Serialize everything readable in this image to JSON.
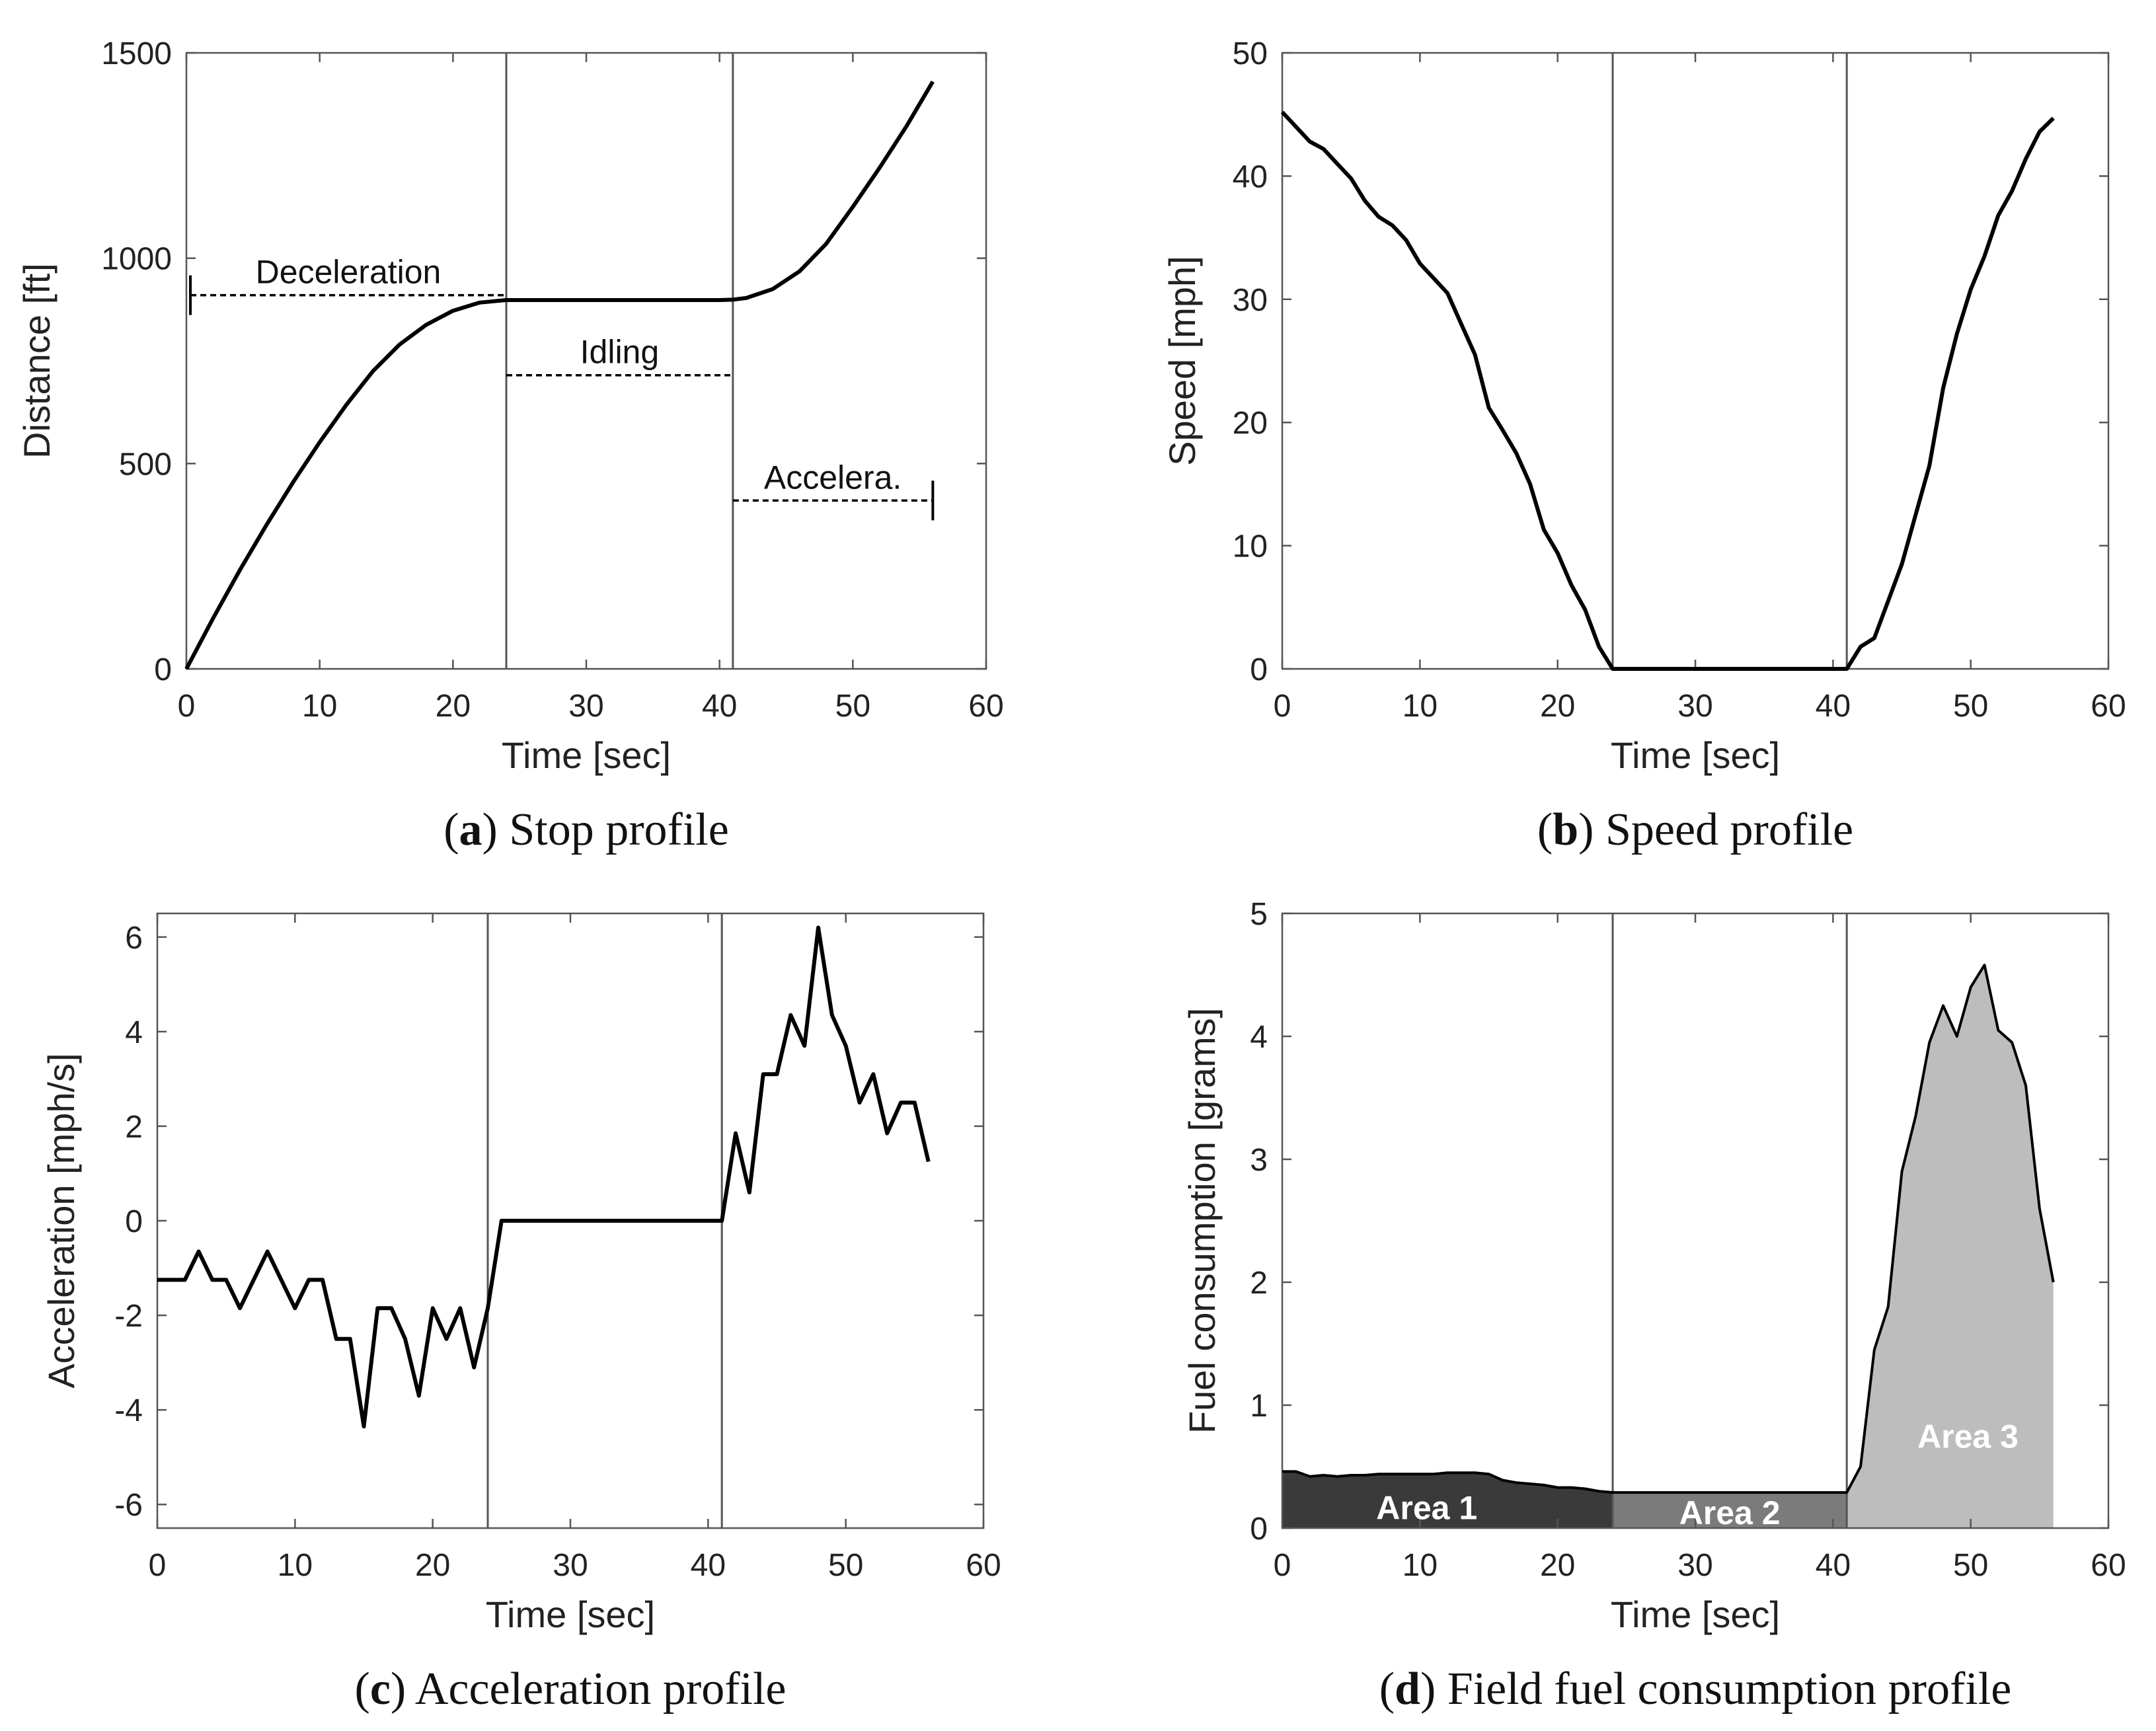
{
  "chart_data": [
    {
      "id": "a",
      "type": "line",
      "caption": {
        "letter": "a",
        "text": "Stop profile",
        "open": "(",
        "close": ")"
      },
      "xlabel": "Time [sec]",
      "ylabel": "Distance [ft]",
      "xlim": [
        0,
        60
      ],
      "ylim": [
        0,
        1500
      ],
      "xticks": [
        0,
        10,
        20,
        30,
        40,
        50,
        60
      ],
      "yticks": [
        0,
        500,
        1000,
        1500
      ],
      "vlines": [
        24,
        41
      ],
      "series": [
        {
          "name": "Distance",
          "x": [
            0,
            2,
            4,
            6,
            8,
            10,
            12,
            14,
            16,
            18,
            20,
            22,
            24,
            26,
            30,
            35,
            40,
            41,
            42,
            44,
            46,
            48,
            50,
            52,
            54,
            56
          ],
          "y": [
            0,
            123,
            240,
            350,
            454,
            552,
            643,
            725,
            790,
            838,
            872,
            892,
            898,
            898,
            898,
            898,
            898,
            899,
            903,
            925,
            968,
            1035,
            1125,
            1220,
            1320,
            1430
          ]
        }
      ],
      "annotations": [
        {
          "text": "Deceleration",
          "x0": 0.3,
          "x1": 24,
          "y": 910,
          "tick": "start"
        },
        {
          "text": "Idling",
          "x0": 24,
          "x1": 41,
          "y": 715,
          "tick": "none"
        },
        {
          "text": "Accelera.",
          "x0": 41,
          "x1": 56,
          "y": 410,
          "tick": "end"
        }
      ]
    },
    {
      "id": "b",
      "type": "line",
      "caption": {
        "letter": "b",
        "text": "Speed profile",
        "open": "(",
        "close": ")"
      },
      "xlabel": "Time [sec]",
      "ylabel": "Speed [mph]",
      "xlim": [
        0,
        60
      ],
      "ylim": [
        0,
        50
      ],
      "xticks": [
        0,
        10,
        20,
        30,
        40,
        50,
        60
      ],
      "yticks": [
        0,
        10,
        20,
        30,
        40,
        50
      ],
      "vlines": [
        24,
        41
      ],
      "series": [
        {
          "name": "Speed",
          "x": [
            0,
            1,
            2,
            3,
            4,
            5,
            6,
            7,
            8,
            9,
            10,
            11,
            12,
            13,
            14,
            15,
            16,
            17,
            18,
            19,
            20,
            21,
            22,
            23,
            24,
            25,
            30,
            35,
            40,
            41,
            42,
            43,
            44,
            45,
            46,
            47,
            48,
            49,
            50,
            51,
            52,
            53,
            54,
            55,
            56
          ],
          "y": [
            45.2,
            44.0,
            42.8,
            42.2,
            41.0,
            39.8,
            38.0,
            36.7,
            36.0,
            34.8,
            32.9,
            31.7,
            30.5,
            28.0,
            25.5,
            21.2,
            19.4,
            17.5,
            15.0,
            11.3,
            9.4,
            6.8,
            4.8,
            1.8,
            0,
            0,
            0,
            0,
            0,
            0,
            1.8,
            2.5,
            5.5,
            8.5,
            12.5,
            16.5,
            22.8,
            27.2,
            30.8,
            33.5,
            36.8,
            38.8,
            41.4,
            43.6,
            44.7
          ]
        }
      ]
    },
    {
      "id": "c",
      "type": "line",
      "caption": {
        "letter": "c",
        "text": "Acceleration profile",
        "open": "(",
        "close": ")"
      },
      "xlabel": "Time [sec]",
      "ylabel": "Acceleration [mph/s]",
      "xlim": [
        0,
        60
      ],
      "ylim": [
        -6.5,
        6.5
      ],
      "xticks": [
        0,
        10,
        20,
        30,
        40,
        50,
        60
      ],
      "yticks": [
        -6,
        -4,
        -2,
        0,
        2,
        4,
        6
      ],
      "yticklabels": [
        "-6",
        "-4",
        "-2",
        "0",
        "2",
        "4",
        "6"
      ],
      "vlines": [
        24,
        41
      ],
      "series": [
        {
          "name": "Acceleration",
          "x": [
            0,
            1,
            2,
            3,
            4,
            5,
            6,
            7,
            8,
            9,
            10,
            11,
            12,
            13,
            14,
            15,
            16,
            17,
            18,
            19,
            20,
            21,
            22,
            23,
            24,
            25,
            30,
            35,
            40,
            41,
            42,
            43,
            44,
            45,
            46,
            47,
            48,
            49,
            50,
            51,
            52,
            53,
            54,
            55,
            56
          ],
          "y": [
            -1.25,
            -1.25,
            -1.25,
            -0.65,
            -1.25,
            -1.25,
            -1.85,
            -1.25,
            -0.65,
            -1.25,
            -1.85,
            -1.25,
            -1.25,
            -2.5,
            -2.5,
            -4.35,
            -1.85,
            -1.85,
            -2.5,
            -3.7,
            -1.85,
            -2.5,
            -1.85,
            -3.1,
            -1.85,
            0,
            0,
            0,
            0,
            0,
            1.85,
            0.6,
            3.1,
            3.1,
            4.35,
            3.7,
            6.2,
            4.35,
            3.7,
            2.5,
            3.1,
            1.85,
            2.5,
            2.5,
            1.25
          ]
        }
      ]
    },
    {
      "id": "d",
      "type": "area",
      "caption": {
        "letter": "d",
        "text": "Field fuel consumption profile",
        "open": "(",
        "close": ")"
      },
      "xlabel": "Time [sec]",
      "ylabel": "Fuel consumption [grams]",
      "xlim": [
        0,
        60
      ],
      "ylim": [
        0,
        5
      ],
      "xticks": [
        0,
        10,
        20,
        30,
        40,
        50,
        60
      ],
      "yticks": [
        0,
        1,
        2,
        3,
        4,
        5
      ],
      "vlines": [
        24,
        41
      ],
      "series": [
        {
          "name": "Fuel consumption",
          "x": [
            0,
            1,
            2,
            3,
            4,
            5,
            6,
            7,
            8,
            9,
            10,
            11,
            12,
            13,
            14,
            15,
            16,
            17,
            18,
            19,
            20,
            21,
            22,
            23,
            24,
            30,
            35,
            40,
            41,
            42,
            43,
            44,
            45,
            46,
            47,
            48,
            49,
            50,
            51,
            52,
            53,
            54,
            55,
            56
          ],
          "y": [
            0.46,
            0.46,
            0.42,
            0.43,
            0.42,
            0.43,
            0.43,
            0.44,
            0.44,
            0.44,
            0.44,
            0.44,
            0.45,
            0.45,
            0.45,
            0.44,
            0.39,
            0.37,
            0.36,
            0.35,
            0.33,
            0.33,
            0.32,
            0.3,
            0.29,
            0.29,
            0.29,
            0.29,
            0.29,
            0.5,
            1.45,
            1.8,
            2.9,
            3.35,
            3.95,
            4.25,
            4.0,
            4.4,
            4.58,
            4.05,
            3.95,
            3.6,
            2.6,
            2.0
          ]
        }
      ],
      "areas": [
        {
          "label": "Area 1",
          "x0": 0,
          "x1": 24,
          "color": "#3a3a3a",
          "label_x": 10.5,
          "label_y": 0.17
        },
        {
          "label": "Area 2",
          "x0": 24,
          "x1": 41,
          "color": "#7b7b7b",
          "label_x": 32.5,
          "label_y": 0.13
        },
        {
          "label": "Area 3",
          "x0": 41,
          "x1": 56,
          "color": "#bdbdbd",
          "label_x": 49.8,
          "label_y": 0.75
        }
      ]
    }
  ]
}
